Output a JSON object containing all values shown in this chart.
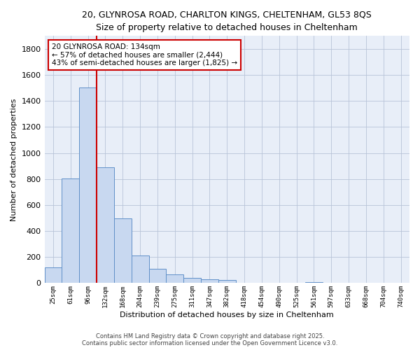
{
  "title_line1": "20, GLYNROSA ROAD, CHARLTON KINGS, CHELTENHAM, GL53 8QS",
  "title_line2": "Size of property relative to detached houses in Cheltenham",
  "xlabel": "Distribution of detached houses by size in Cheltenham",
  "ylabel": "Number of detached properties",
  "bar_color": "#c8d8f0",
  "bar_edge_color": "#6090c8",
  "background_color": "#e8eef8",
  "grid_color": "#b8c4d8",
  "vline_color": "#cc0000",
  "annotation_box_color": "#cc0000",
  "categories": [
    "25sqm",
    "61sqm",
    "96sqm",
    "132sqm",
    "168sqm",
    "204sqm",
    "239sqm",
    "275sqm",
    "311sqm",
    "347sqm",
    "382sqm",
    "418sqm",
    "454sqm",
    "490sqm",
    "525sqm",
    "561sqm",
    "597sqm",
    "633sqm",
    "668sqm",
    "704sqm",
    "740sqm"
  ],
  "values": [
    120,
    805,
    1505,
    890,
    500,
    210,
    110,
    65,
    42,
    30,
    25,
    0,
    0,
    0,
    0,
    10,
    0,
    0,
    0,
    0,
    0
  ],
  "ylim": [
    0,
    1900
  ],
  "yticks": [
    0,
    200,
    400,
    600,
    800,
    1000,
    1200,
    1400,
    1600,
    1800
  ],
  "vline_x_index": 2.5,
  "annotation_text": "20 GLYNROSA ROAD: 134sqm\n← 57% of detached houses are smaller (2,444)\n43% of semi-detached houses are larger (1,825) →",
  "footer_text": "Contains HM Land Registry data © Crown copyright and database right 2025.\nContains public sector information licensed under the Open Government Licence v3.0.",
  "figsize": [
    6.0,
    5.0
  ],
  "dpi": 100
}
